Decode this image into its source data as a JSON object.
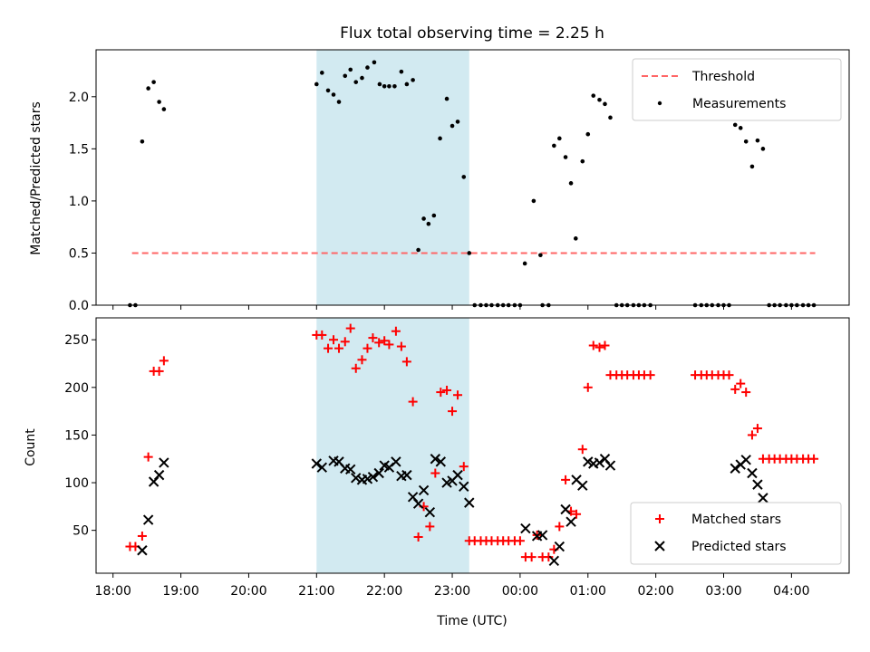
{
  "figure": {
    "title": "Flux total observing time = 2.25 h",
    "xlabel": "Time (UTC)"
  },
  "colors": {
    "shade": "#add8e6",
    "threshold": "#ff6666",
    "measurements": "#000000",
    "matched": "#ff0000",
    "predicted": "#000000"
  },
  "chart_data": [
    {
      "type": "scatter",
      "ylabel": "Matched/Predicted stars",
      "x_unit": "hours since 18:00 UTC",
      "xlim": [
        -0.25,
        10.85
      ],
      "ylim": [
        0,
        2.45
      ],
      "grid": false,
      "legend": "top-right",
      "yticks": [
        0.0,
        0.5,
        1.0,
        1.5,
        2.0
      ],
      "ytick_labels": [
        "0.0",
        "0.5",
        "1.0",
        "1.5",
        "2.0"
      ],
      "shaded_span": [
        3.0,
        5.25
      ],
      "threshold": {
        "name": "Threshold",
        "y": 0.5,
        "x_range": [
          0.28,
          10.35
        ]
      },
      "series": [
        {
          "name": "Measurements",
          "points": [
            [
              0.25,
              0.0
            ],
            [
              0.33,
              0.0
            ],
            [
              0.43,
              1.57
            ],
            [
              0.52,
              2.08
            ],
            [
              0.6,
              2.14
            ],
            [
              0.68,
              1.95
            ],
            [
              0.75,
              1.88
            ],
            [
              3.0,
              2.12
            ],
            [
              3.08,
              2.23
            ],
            [
              3.17,
              2.06
            ],
            [
              3.25,
              2.02
            ],
            [
              3.33,
              1.95
            ],
            [
              3.42,
              2.2
            ],
            [
              3.5,
              2.26
            ],
            [
              3.58,
              2.14
            ],
            [
              3.67,
              2.18
            ],
            [
              3.75,
              2.28
            ],
            [
              3.85,
              2.33
            ],
            [
              3.93,
              2.12
            ],
            [
              4.0,
              2.1
            ],
            [
              4.07,
              2.1
            ],
            [
              4.15,
              2.1
            ],
            [
              4.25,
              2.24
            ],
            [
              4.33,
              2.12
            ],
            [
              4.42,
              2.16
            ],
            [
              4.5,
              0.53
            ],
            [
              4.58,
              0.83
            ],
            [
              4.65,
              0.78
            ],
            [
              4.73,
              0.86
            ],
            [
              4.82,
              1.6
            ],
            [
              4.92,
              1.98
            ],
            [
              5.0,
              1.72
            ],
            [
              5.08,
              1.76
            ],
            [
              5.17,
              1.23
            ],
            [
              5.25,
              0.5
            ],
            [
              5.33,
              0.0
            ],
            [
              5.42,
              0.0
            ],
            [
              5.5,
              0.0
            ],
            [
              5.58,
              0.0
            ],
            [
              5.67,
              0.0
            ],
            [
              5.75,
              0.0
            ],
            [
              5.83,
              0.0
            ],
            [
              5.92,
              0.0
            ],
            [
              6.0,
              0.0
            ],
            [
              6.07,
              0.4
            ],
            [
              6.2,
              1.0
            ],
            [
              6.3,
              0.48
            ],
            [
              6.33,
              0.0
            ],
            [
              6.42,
              0.0
            ],
            [
              6.5,
              1.53
            ],
            [
              6.58,
              1.6
            ],
            [
              6.67,
              1.42
            ],
            [
              6.75,
              1.17
            ],
            [
              6.82,
              0.64
            ],
            [
              6.92,
              1.38
            ],
            [
              7.0,
              1.64
            ],
            [
              7.08,
              2.01
            ],
            [
              7.17,
              1.97
            ],
            [
              7.25,
              1.93
            ],
            [
              7.33,
              1.8
            ],
            [
              7.42,
              0.0
            ],
            [
              7.5,
              0.0
            ],
            [
              7.58,
              0.0
            ],
            [
              7.67,
              0.0
            ],
            [
              7.75,
              0.0
            ],
            [
              7.83,
              0.0
            ],
            [
              7.92,
              0.0
            ],
            [
              8.58,
              0.0
            ],
            [
              8.67,
              0.0
            ],
            [
              8.75,
              0.0
            ],
            [
              8.83,
              0.0
            ],
            [
              8.92,
              0.0
            ],
            [
              9.0,
              0.0
            ],
            [
              9.08,
              0.0
            ],
            [
              9.17,
              1.73
            ],
            [
              9.25,
              1.7
            ],
            [
              9.33,
              1.57
            ],
            [
              9.42,
              1.33
            ],
            [
              9.5,
              1.58
            ],
            [
              9.58,
              1.5
            ],
            [
              9.67,
              0.0
            ],
            [
              9.75,
              0.0
            ],
            [
              9.83,
              0.0
            ],
            [
              9.92,
              0.0
            ],
            [
              10.0,
              0.0
            ],
            [
              10.08,
              0.0
            ],
            [
              10.17,
              0.0
            ],
            [
              10.25,
              0.0
            ],
            [
              10.33,
              0.0
            ]
          ]
        }
      ]
    },
    {
      "type": "scatter",
      "ylabel": "Count",
      "x_unit": "hours since 18:00 UTC",
      "xlim": [
        -0.25,
        10.85
      ],
      "ylim": [
        5,
        273
      ],
      "grid": false,
      "legend": "bottom-right",
      "yticks": [
        50,
        100,
        150,
        200,
        250
      ],
      "ytick_labels": [
        "50",
        "100",
        "150",
        "200",
        "250"
      ],
      "xticks": [
        0,
        1,
        2,
        3,
        4,
        5,
        6,
        7,
        8,
        9,
        10
      ],
      "xtick_labels": [
        "18:00",
        "19:00",
        "20:00",
        "21:00",
        "22:00",
        "23:00",
        "00:00",
        "01:00",
        "02:00",
        "03:00",
        "04:00"
      ],
      "shaded_span": [
        3.0,
        5.25
      ],
      "series": [
        {
          "name": "Matched stars",
          "marker": "plus",
          "points": [
            [
              0.25,
              33
            ],
            [
              0.33,
              33
            ],
            [
              0.43,
              44
            ],
            [
              0.52,
              127
            ],
            [
              0.6,
              217
            ],
            [
              0.68,
              217
            ],
            [
              0.75,
              228
            ],
            [
              3.0,
              255
            ],
            [
              3.08,
              255
            ],
            [
              3.17,
              241
            ],
            [
              3.25,
              250
            ],
            [
              3.33,
              241
            ],
            [
              3.42,
              248
            ],
            [
              3.5,
              262
            ],
            [
              3.58,
              220
            ],
            [
              3.67,
              229
            ],
            [
              3.75,
              241
            ],
            [
              3.83,
              252
            ],
            [
              3.92,
              247
            ],
            [
              4.0,
              249
            ],
            [
              4.07,
              245
            ],
            [
              4.17,
              259
            ],
            [
              4.25,
              243
            ],
            [
              4.33,
              227
            ],
            [
              4.42,
              185
            ],
            [
              4.5,
              43
            ],
            [
              4.58,
              75
            ],
            [
              4.67,
              54
            ],
            [
              4.75,
              110
            ],
            [
              4.83,
              195
            ],
            [
              4.92,
              197
            ],
            [
              5.0,
              175
            ],
            [
              5.08,
              192
            ],
            [
              5.17,
              117
            ],
            [
              5.25,
              39
            ],
            [
              5.33,
              39
            ],
            [
              5.42,
              39
            ],
            [
              5.5,
              39
            ],
            [
              5.58,
              39
            ],
            [
              5.67,
              39
            ],
            [
              5.75,
              39
            ],
            [
              5.83,
              39
            ],
            [
              5.92,
              39
            ],
            [
              6.0,
              39
            ],
            [
              6.08,
              22
            ],
            [
              6.17,
              22
            ],
            [
              6.25,
              45
            ],
            [
              6.33,
              22
            ],
            [
              6.42,
              22
            ],
            [
              6.5,
              30
            ],
            [
              6.58,
              54
            ],
            [
              6.67,
              103
            ],
            [
              6.75,
              70
            ],
            [
              6.83,
              67
            ],
            [
              6.92,
              135
            ],
            [
              7.0,
              200
            ],
            [
              7.08,
              244
            ],
            [
              7.17,
              242
            ],
            [
              7.25,
              244
            ],
            [
              7.33,
              213
            ],
            [
              7.42,
              213
            ],
            [
              7.5,
              213
            ],
            [
              7.58,
              213
            ],
            [
              7.67,
              213
            ],
            [
              7.75,
              213
            ],
            [
              7.83,
              213
            ],
            [
              7.92,
              213
            ],
            [
              8.58,
              213
            ],
            [
              8.67,
              213
            ],
            [
              8.75,
              213
            ],
            [
              8.83,
              213
            ],
            [
              8.92,
              213
            ],
            [
              9.0,
              213
            ],
            [
              9.08,
              213
            ],
            [
              9.17,
              198
            ],
            [
              9.25,
              204
            ],
            [
              9.33,
              195
            ],
            [
              9.42,
              150
            ],
            [
              9.5,
              157
            ],
            [
              9.58,
              125
            ],
            [
              9.67,
              125
            ],
            [
              9.75,
              125
            ],
            [
              9.83,
              125
            ],
            [
              9.92,
              125
            ],
            [
              10.0,
              125
            ],
            [
              10.08,
              125
            ],
            [
              10.17,
              125
            ],
            [
              10.25,
              125
            ],
            [
              10.33,
              125
            ]
          ]
        },
        {
          "name": "Predicted stars",
          "marker": "x",
          "points": [
            [
              0.43,
              29
            ],
            [
              0.52,
              61
            ],
            [
              0.6,
              101
            ],
            [
              0.68,
              108
            ],
            [
              0.75,
              121
            ],
            [
              3.0,
              120
            ],
            [
              3.08,
              116
            ],
            [
              3.25,
              123
            ],
            [
              3.33,
              122
            ],
            [
              3.42,
              115
            ],
            [
              3.5,
              114
            ],
            [
              3.58,
              105
            ],
            [
              3.67,
              103
            ],
            [
              3.75,
              104
            ],
            [
              3.83,
              106
            ],
            [
              3.92,
              110
            ],
            [
              4.0,
              118
            ],
            [
              4.07,
              116
            ],
            [
              4.17,
              122
            ],
            [
              4.25,
              107
            ],
            [
              4.33,
              108
            ],
            [
              4.42,
              85
            ],
            [
              4.5,
              78
            ],
            [
              4.58,
              92
            ],
            [
              4.67,
              69
            ],
            [
              4.75,
              125
            ],
            [
              4.83,
              122
            ],
            [
              4.92,
              100
            ],
            [
              5.0,
              102
            ],
            [
              5.08,
              108
            ],
            [
              5.17,
              96
            ],
            [
              5.25,
              79
            ],
            [
              6.08,
              52
            ],
            [
              6.25,
              44
            ],
            [
              6.33,
              45
            ],
            [
              6.5,
              18
            ],
            [
              6.58,
              33
            ],
            [
              6.67,
              72
            ],
            [
              6.75,
              59
            ],
            [
              6.83,
              103
            ],
            [
              6.92,
              97
            ],
            [
              7.0,
              122
            ],
            [
              7.08,
              120
            ],
            [
              7.17,
              121
            ],
            [
              7.25,
              125
            ],
            [
              7.33,
              118
            ],
            [
              9.17,
              115
            ],
            [
              9.25,
              119
            ],
            [
              9.33,
              124
            ],
            [
              9.42,
              110
            ],
            [
              9.5,
              98
            ],
            [
              9.58,
              84
            ]
          ]
        }
      ]
    }
  ]
}
